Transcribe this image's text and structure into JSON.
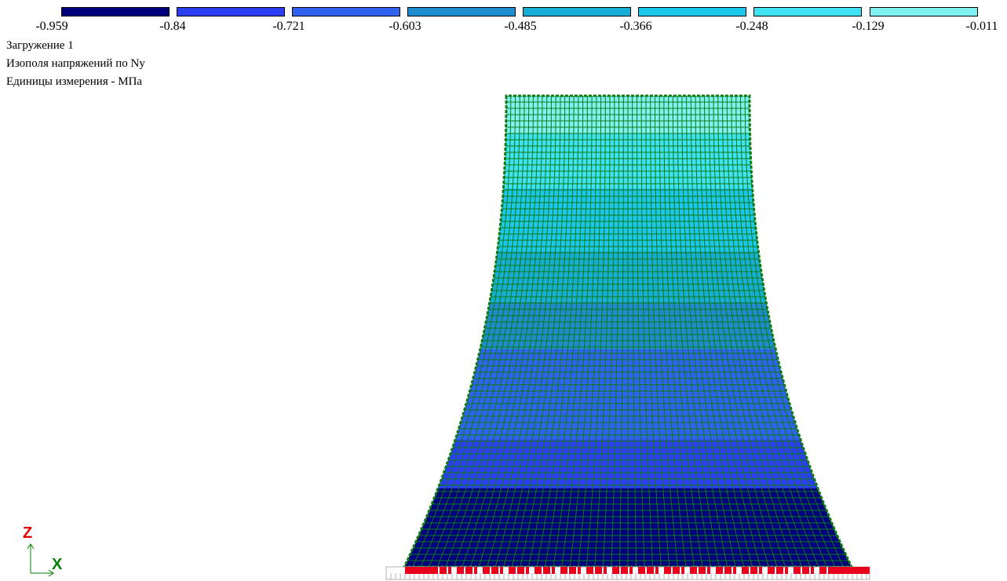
{
  "legend": {
    "colors": [
      "#00007f",
      "#2a3df0",
      "#2f62ee",
      "#1f8ccf",
      "#17aed6",
      "#1cc7ec",
      "#3ee2f2",
      "#7ff1f1"
    ],
    "ticks": [
      "-0.959",
      "-0.84",
      "-0.721",
      "-0.603",
      "-0.485",
      "-0.366",
      "-0.248",
      "-0.129",
      "-0.011"
    ]
  },
  "info": {
    "load_case": "Загружение 1",
    "field": "Изополя напряжений по Ny",
    "units": "Единицы измерения - МПа"
  },
  "axes": {
    "vertical": "Z",
    "horizontal": "X",
    "vertical_color": "#e00000",
    "horizontal_color": "#008000"
  },
  "mesh": {
    "line_color": "#0d7a14",
    "support_color": "#e8001c"
  }
}
